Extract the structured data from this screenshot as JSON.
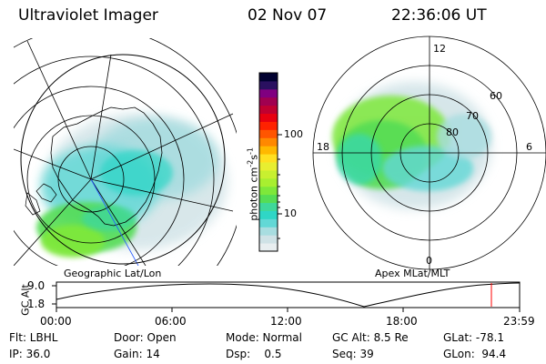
{
  "header": {
    "title": "Ultraviolet Imager",
    "date": "02 Nov 07",
    "time": "22:36:06 UT"
  },
  "left_panel": {
    "caption": "Geographic Lat/Lon"
  },
  "right_panel": {
    "caption": "Apex MLat/MLT",
    "mlt_labels": [
      "12",
      "18",
      "6",
      "0"
    ],
    "lat_labels": [
      "60",
      "70",
      "80"
    ]
  },
  "colorbar": {
    "label": "photon cm",
    "label_sup1": "-2",
    "label_mid": "s",
    "label_sup2": "-1",
    "ticks": [
      "100",
      "10"
    ],
    "colors": [
      "#e8eef0",
      "#cfe2e6",
      "#a8dde0",
      "#62d8d6",
      "#2fd6c6",
      "#3fd89a",
      "#55dd55",
      "#7ee83a",
      "#a8ef30",
      "#c8f030",
      "#e8ee30",
      "#ffe020",
      "#ffb800",
      "#ff8800",
      "#ff5500",
      "#ff2200",
      "#e80010",
      "#c00030",
      "#a00050",
      "#800080",
      "#2a1060",
      "#000030"
    ]
  },
  "timeline": {
    "ylabel": "GC Alt",
    "y_ticks": [
      "9.0",
      "1.8"
    ],
    "x_ticks": [
      "00:00",
      "06:00",
      "12:00",
      "18:00",
      "23:59"
    ],
    "marker_color": "#ff0000"
  },
  "info": {
    "flt": "Flt: LBHL",
    "ip": "IP: 36.0",
    "door": "Door: Open",
    "gain": "Gain: 14",
    "mode": "Mode: Normal",
    "dsp": "Dsp:    0.5",
    "gc_alt": "GC Alt: 8.5 Re",
    "seq": "Seq: 39",
    "glat": "GLat: -78.1",
    "glon": "GLon:  94.4"
  }
}
